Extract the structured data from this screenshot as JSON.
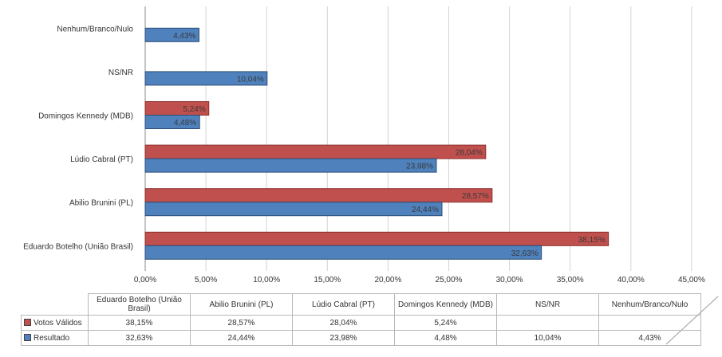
{
  "chart_data": {
    "type": "bar",
    "orientation": "horizontal",
    "categories": [
      "Eduardo Botelho (União Brasil)",
      "Abilio Brunini (PL)",
      "Lúdio Cabral (PT)",
      "Domingos Kennedy (MDB)",
      "NS/NR",
      "Nenhum/Branco/Nulo"
    ],
    "table_headers": [
      "Eduardo Botelho (União Brasil)",
      "Abilio Brunini (PL)",
      "Lúdio Cabral (PT)",
      "Domingos Kennedy (MDB)",
      "NS/NR",
      "Nenhum/Branco/Nulo"
    ],
    "series": [
      {
        "name": "Votos Válidos",
        "color": "#c0504d",
        "border": "#8b2e2c",
        "values": [
          38.15,
          28.57,
          28.04,
          5.24,
          null,
          null
        ],
        "labels": [
          "38,15%",
          "28,57%",
          "28,04%",
          "5,24%",
          "",
          ""
        ]
      },
      {
        "name": "Resultado",
        "color": "#4f81bd",
        "border": "#2c4d75",
        "values": [
          32.63,
          24.44,
          23.98,
          4.48,
          10.04,
          4.43
        ],
        "labels": [
          "32,63%",
          "24,44%",
          "23,98%",
          "4,48%",
          "10,04%",
          "4,43%"
        ]
      }
    ],
    "x_ticks": [
      0,
      5,
      10,
      15,
      20,
      25,
      30,
      35,
      40,
      45
    ],
    "x_tick_labels": [
      "0,00%",
      "5,00%",
      "10,00%",
      "15,00%",
      "20,00%",
      "25,00%",
      "30,00%",
      "35,00%",
      "40,00%",
      "45,00%"
    ],
    "xlim": [
      0,
      45
    ],
    "grid": true,
    "legend": "data-table"
  }
}
